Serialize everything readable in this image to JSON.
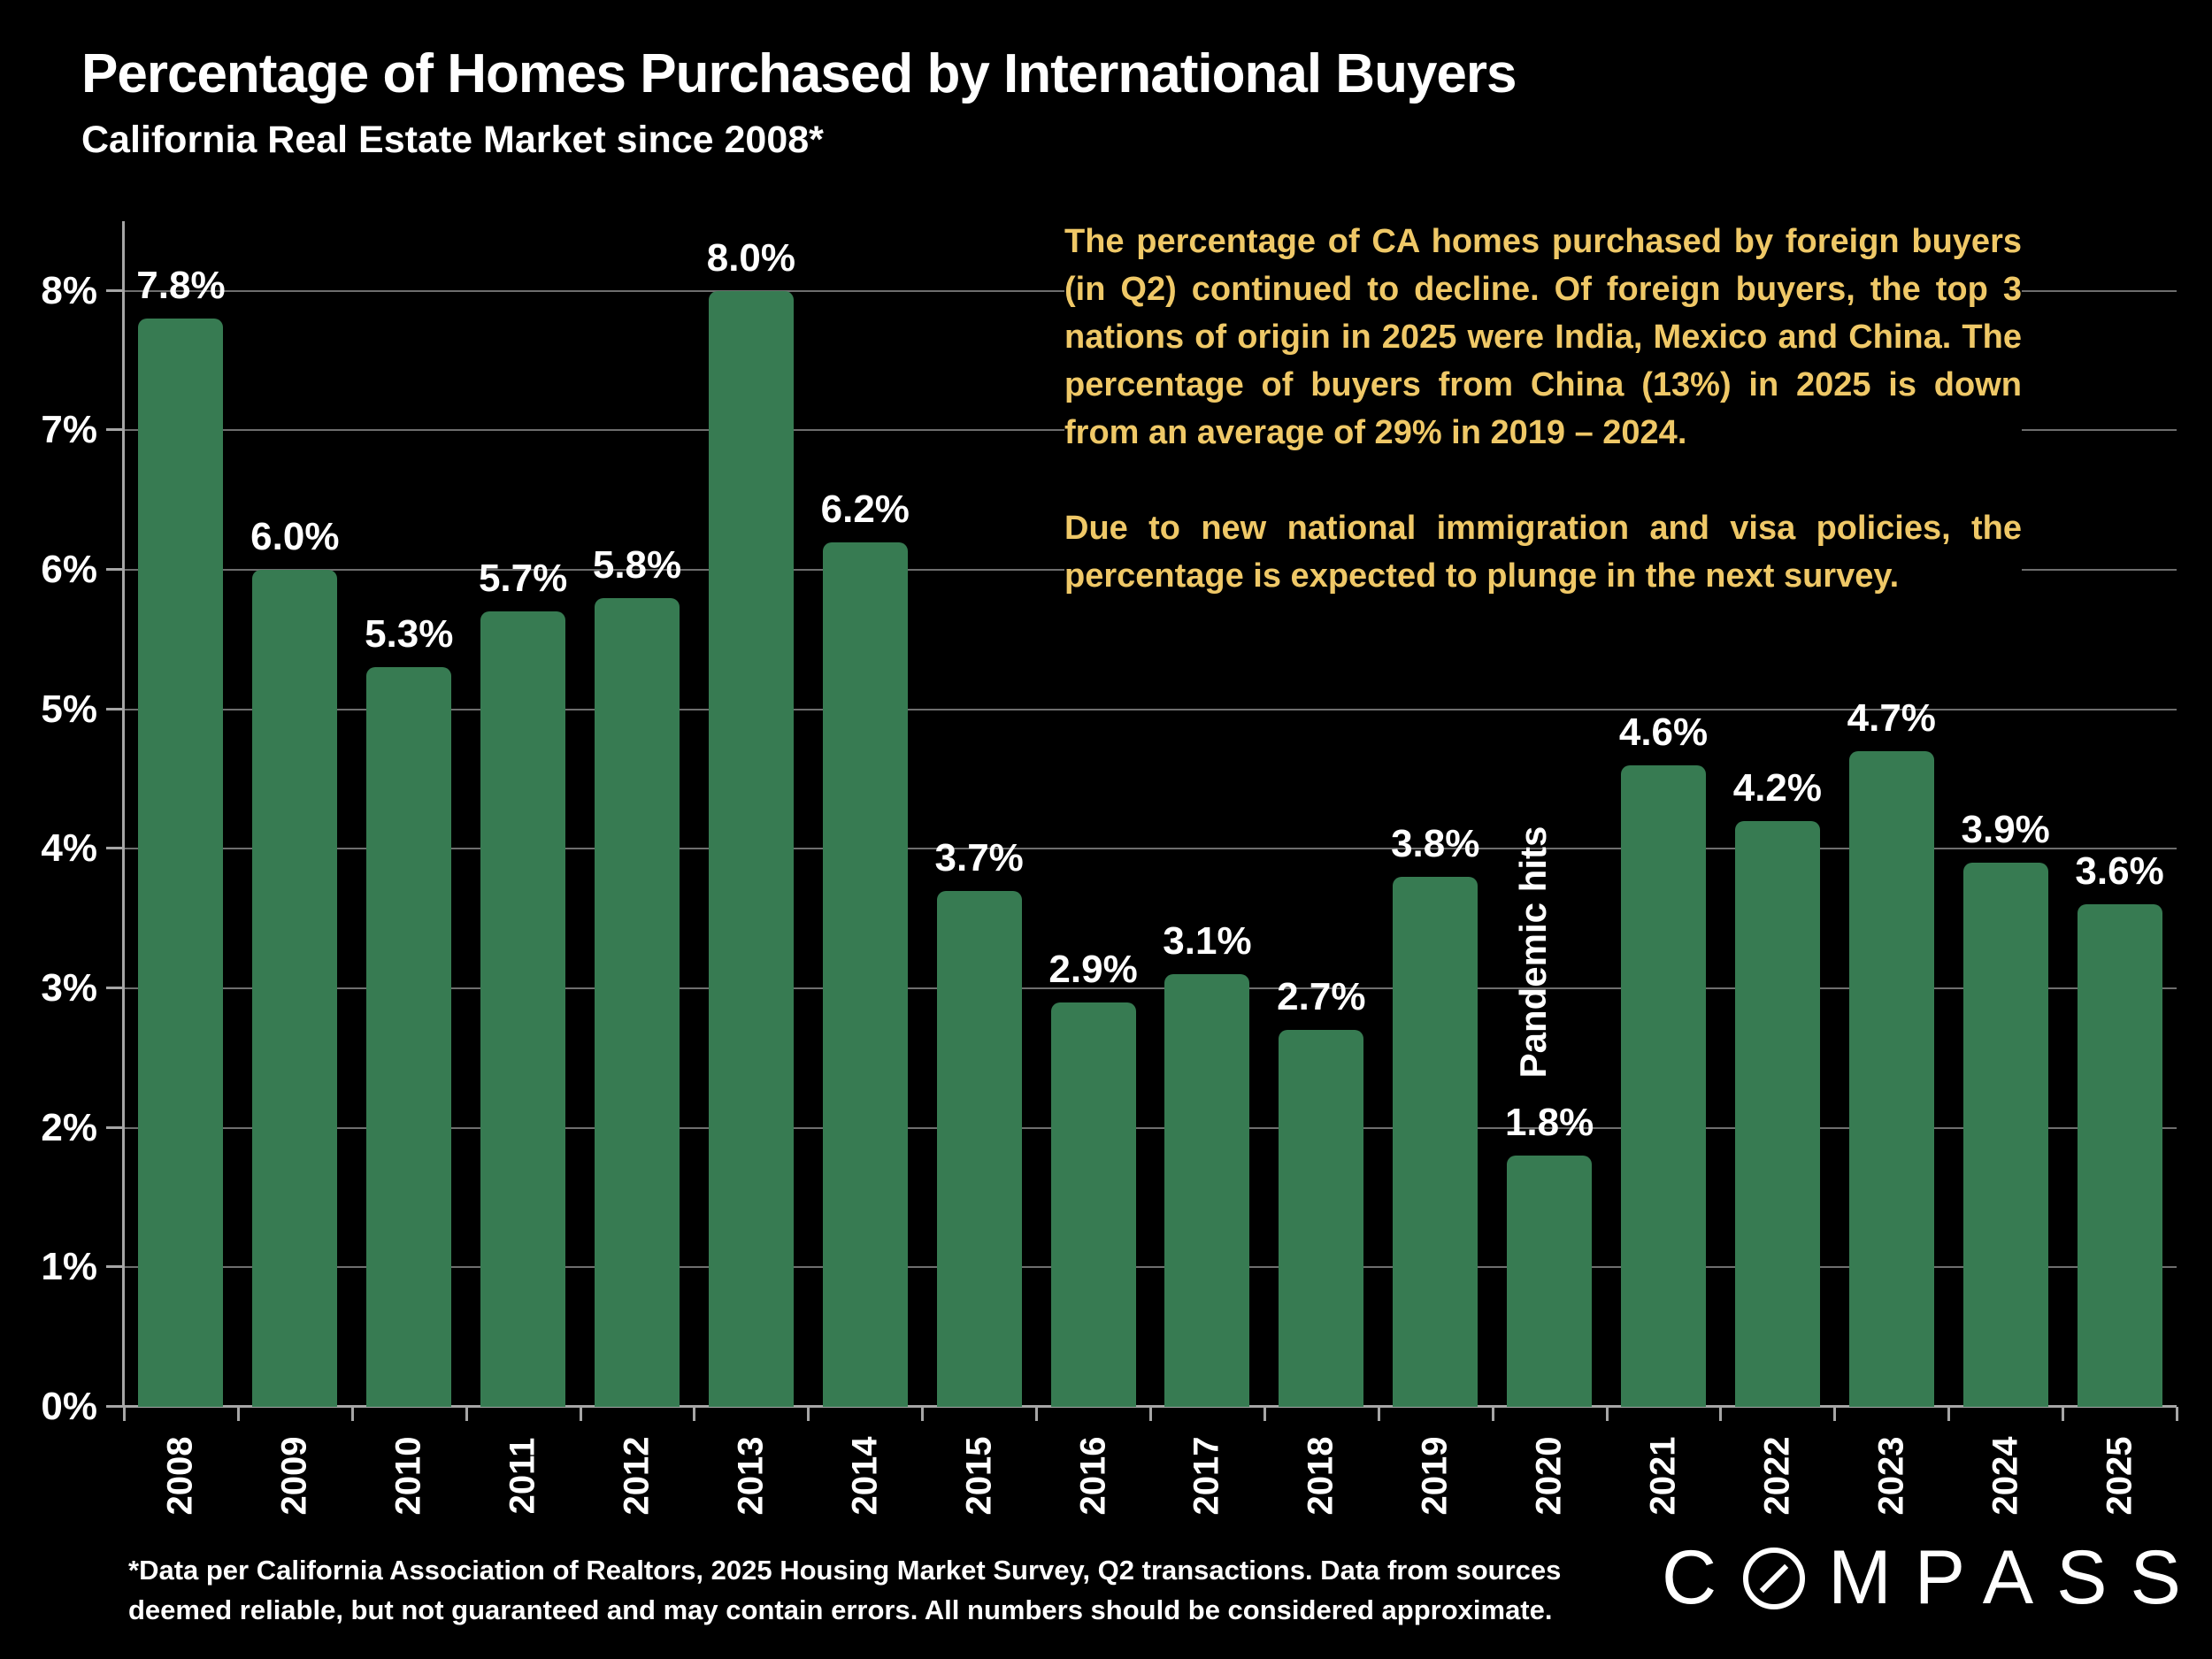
{
  "title": "Percentage of Homes Purchased by International Buyers",
  "subtitle": "California Real Estate Market since 2008*",
  "annotation": {
    "color": "#EFC867",
    "paragraph1": "The percentage of CA homes purchased by foreign buyers (in Q2) continued to decline. Of foreign buyers, the top 3 nations of origin in 2025 were India, Mexico and China. The percentage of buyers from China (13%) in 2025 is down from an average of 29% in 2019 – 2024.",
    "paragraph2": "Due to new national immigration and visa policies, the percentage is expected to plunge in the next survey."
  },
  "chart_data": {
    "type": "bar",
    "categories": [
      "2008",
      "2009",
      "2010",
      "2011",
      "2012",
      "2013",
      "2014",
      "2015",
      "2016",
      "2017",
      "2018",
      "2019",
      "2020",
      "2021",
      "2022",
      "2023",
      "2024",
      "2025"
    ],
    "values": [
      7.8,
      6.0,
      5.3,
      5.7,
      5.8,
      8.0,
      6.2,
      3.7,
      2.9,
      3.1,
      2.7,
      3.8,
      1.8,
      4.6,
      4.2,
      4.7,
      3.9,
      3.6
    ],
    "bar_labels": [
      "7.8%",
      "6.0%",
      "5.3%",
      "5.7%",
      "5.8%",
      "8.0%",
      "6.2%",
      "3.7%",
      "2.9%",
      "3.1%",
      "2.7%",
      "3.8%",
      "1.8%",
      "4.6%",
      "4.2%",
      "4.7%",
      "3.9%",
      "3.6%"
    ],
    "yticks": [
      0,
      1,
      2,
      3,
      4,
      5,
      6,
      7,
      8
    ],
    "ytick_labels": [
      "0%",
      "1%",
      "2%",
      "3%",
      "4%",
      "5%",
      "6%",
      "7%",
      "8%"
    ],
    "ylim": [
      0,
      8.5
    ],
    "grid": true,
    "legend": "none",
    "bar_color": "#377B52",
    "title": "Percentage of Homes Purchased by International Buyers",
    "xlabel": "",
    "ylabel": "",
    "bar_annotation": {
      "category": "2020",
      "text": "Pandemic hits"
    }
  },
  "footnote": {
    "lines": [
      "*Data per California Association of Realtors, 2025 Housing Market Survey, Q2 transactions. Data from sources",
      "deemed reliable, but not guaranteed and may contain errors. All numbers should be considered approximate."
    ]
  },
  "logo": {
    "prefix": "C",
    "suffix": "MPASS"
  },
  "colors": {
    "background": "#000000",
    "bar": "#377B52",
    "gridline": "#6e6e6e",
    "axis": "#a6a6a6",
    "text": "#ffffff",
    "annotation_gold": "#EFC867"
  }
}
